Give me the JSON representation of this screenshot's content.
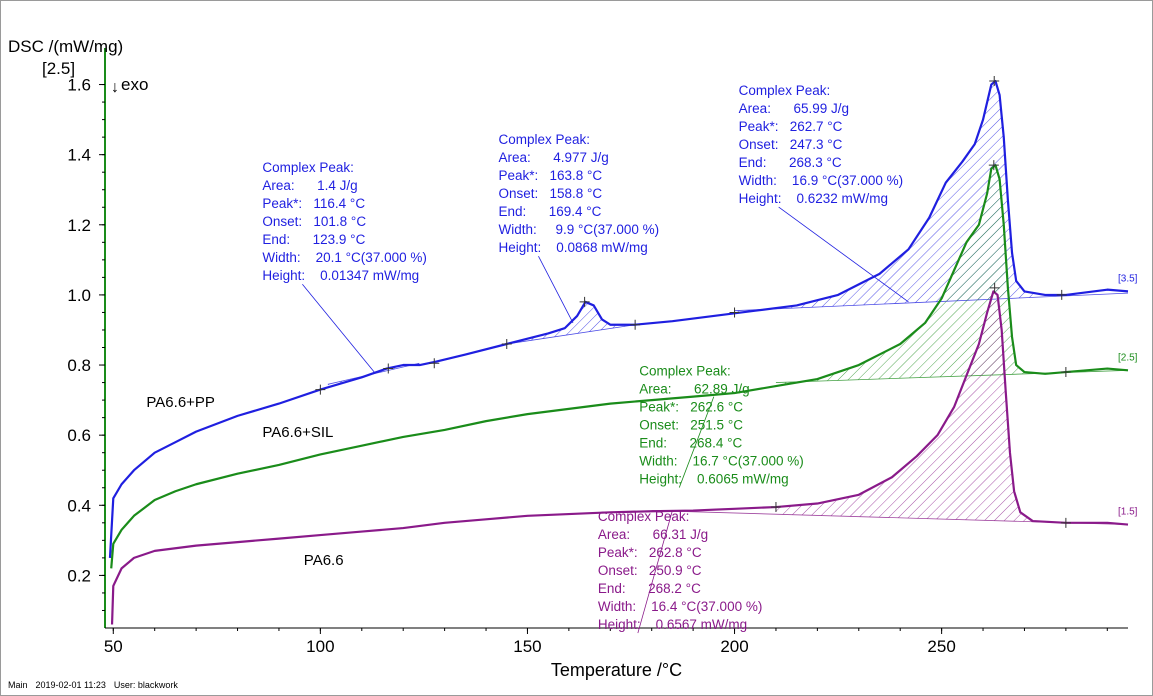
{
  "chart_data": {
    "type": "line",
    "ylabel": "DSC /(mW/mg)",
    "xlabel": "Temperature /°C",
    "ylim_bracket": "[2.5]",
    "exo_label": "exo",
    "exo_arrow": "↓",
    "xlim": [
      48,
      295
    ],
    "ylim": [
      0.05,
      1.67
    ],
    "x_ticks": [
      50,
      100,
      150,
      200,
      250
    ],
    "y_ticks": [
      0.2,
      0.4,
      0.6,
      0.8,
      1.0,
      1.2,
      1.4,
      1.6
    ],
    "y_tick_labels": [
      "0.2",
      "0.4",
      "0.6",
      "0.8",
      "1.0",
      "1.2",
      "1.4",
      "1.6"
    ],
    "series": [
      {
        "name": "PA6.6+PP",
        "color": "#1f1fe0",
        "end_tag": "[3.5]",
        "points": [
          [
            49.2,
            0.25
          ],
          [
            50,
            0.42
          ],
          [
            52,
            0.46
          ],
          [
            55,
            0.5
          ],
          [
            60,
            0.55
          ],
          [
            65,
            0.58
          ],
          [
            70,
            0.61
          ],
          [
            80,
            0.655
          ],
          [
            90,
            0.69
          ],
          [
            100,
            0.73
          ],
          [
            110,
            0.765
          ],
          [
            116,
            0.79
          ],
          [
            120,
            0.8
          ],
          [
            124,
            0.8
          ],
          [
            128,
            0.81
          ],
          [
            135,
            0.83
          ],
          [
            145,
            0.86
          ],
          [
            150,
            0.875
          ],
          [
            155,
            0.89
          ],
          [
            159,
            0.905
          ],
          [
            162,
            0.94
          ],
          [
            164,
            0.98
          ],
          [
            166,
            0.97
          ],
          [
            168,
            0.93
          ],
          [
            170,
            0.915
          ],
          [
            176,
            0.915
          ],
          [
            185,
            0.925
          ],
          [
            195,
            0.94
          ],
          [
            205,
            0.955
          ],
          [
            215,
            0.97
          ],
          [
            225,
            1.0
          ],
          [
            235,
            1.06
          ],
          [
            242,
            1.13
          ],
          [
            247,
            1.22
          ],
          [
            251,
            1.32
          ],
          [
            255,
            1.38
          ],
          [
            258,
            1.43
          ],
          [
            260,
            1.5
          ],
          [
            262,
            1.6
          ],
          [
            263,
            1.61
          ],
          [
            264,
            1.57
          ],
          [
            265,
            1.45
          ],
          [
            266,
            1.27
          ],
          [
            267,
            1.12
          ],
          [
            268,
            1.04
          ],
          [
            270,
            1.01
          ],
          [
            275,
            1.0
          ],
          [
            280,
            1.0
          ],
          [
            290,
            1.015
          ],
          [
            295,
            1.01
          ]
        ],
        "baselines": [
          {
            "from": [
              101.8,
              0.745
            ],
            "to": [
              123.9,
              0.805
            ]
          },
          {
            "from": [
              145,
              0.86
            ],
            "to": [
              176,
              0.915
            ]
          },
          {
            "from": [
              200,
              0.955
            ],
            "to": [
              295,
              1.005
            ]
          }
        ],
        "hatches": [
          {
            "from": 101.8,
            "to": 123.9
          },
          {
            "from": 145,
            "to": 176
          },
          {
            "from": 200,
            "to": 272
          }
        ],
        "markers": [
          [
            100,
            0.73
          ],
          [
            116.4,
            0.79
          ],
          [
            127.5,
            0.805
          ],
          [
            145,
            0.86
          ],
          [
            163.8,
            0.98
          ],
          [
            176,
            0.915
          ],
          [
            200,
            0.95
          ],
          [
            262.7,
            1.61
          ],
          [
            279,
            1.0
          ]
        ]
      },
      {
        "name": "PA6.6+SIL",
        "color": "#1a8c1a",
        "end_tag": "[2.5]",
        "points": [
          [
            49.5,
            0.22
          ],
          [
            50,
            0.29
          ],
          [
            52,
            0.33
          ],
          [
            55,
            0.37
          ],
          [
            60,
            0.415
          ],
          [
            65,
            0.44
          ],
          [
            70,
            0.46
          ],
          [
            80,
            0.49
          ],
          [
            90,
            0.515
          ],
          [
            100,
            0.545
          ],
          [
            110,
            0.57
          ],
          [
            120,
            0.595
          ],
          [
            130,
            0.615
          ],
          [
            140,
            0.64
          ],
          [
            150,
            0.66
          ],
          [
            160,
            0.675
          ],
          [
            170,
            0.69
          ],
          [
            180,
            0.7
          ],
          [
            190,
            0.71
          ],
          [
            200,
            0.72
          ],
          [
            210,
            0.74
          ],
          [
            220,
            0.76
          ],
          [
            230,
            0.8
          ],
          [
            240,
            0.86
          ],
          [
            246,
            0.92
          ],
          [
            250,
            0.99
          ],
          [
            253,
            1.07
          ],
          [
            256,
            1.15
          ],
          [
            259,
            1.2
          ],
          [
            261,
            1.29
          ],
          [
            262,
            1.36
          ],
          [
            263,
            1.37
          ],
          [
            264,
            1.33
          ],
          [
            265,
            1.2
          ],
          [
            266,
            1.02
          ],
          [
            267,
            0.88
          ],
          [
            268,
            0.8
          ],
          [
            270,
            0.78
          ],
          [
            275,
            0.775
          ],
          [
            280,
            0.78
          ],
          [
            290,
            0.79
          ],
          [
            295,
            0.785
          ]
        ],
        "baselines": [
          {
            "from": [
              210,
              0.75
            ],
            "to": [
              295,
              0.785
            ]
          }
        ],
        "hatches": [
          {
            "from": 210,
            "to": 272
          }
        ],
        "markers": [
          [
            262.6,
            1.37
          ],
          [
            280,
            0.78
          ]
        ]
      },
      {
        "name": "PA6.6",
        "color": "#8a1a8a",
        "end_tag": "[1.5]",
        "points": [
          [
            49.7,
            0.06
          ],
          [
            50,
            0.17
          ],
          [
            52,
            0.22
          ],
          [
            55,
            0.25
          ],
          [
            60,
            0.27
          ],
          [
            70,
            0.285
          ],
          [
            80,
            0.295
          ],
          [
            90,
            0.305
          ],
          [
            100,
            0.315
          ],
          [
            110,
            0.325
          ],
          [
            120,
            0.335
          ],
          [
            130,
            0.35
          ],
          [
            140,
            0.36
          ],
          [
            150,
            0.37
          ],
          [
            160,
            0.375
          ],
          [
            170,
            0.38
          ],
          [
            180,
            0.383
          ],
          [
            190,
            0.385
          ],
          [
            200,
            0.39
          ],
          [
            210,
            0.395
          ],
          [
            220,
            0.405
          ],
          [
            230,
            0.43
          ],
          [
            238,
            0.48
          ],
          [
            244,
            0.54
          ],
          [
            249,
            0.6
          ],
          [
            253,
            0.68
          ],
          [
            256,
            0.77
          ],
          [
            259,
            0.86
          ],
          [
            261,
            0.95
          ],
          [
            262.5,
            1.01
          ],
          [
            263.5,
            1.0
          ],
          [
            264.5,
            0.9
          ],
          [
            265.5,
            0.72
          ],
          [
            266.5,
            0.55
          ],
          [
            267.5,
            0.44
          ],
          [
            269,
            0.38
          ],
          [
            272,
            0.355
          ],
          [
            280,
            0.35
          ],
          [
            290,
            0.35
          ],
          [
            295,
            0.345
          ]
        ],
        "baselines": [
          {
            "from": [
              180,
              0.385
            ],
            "to": [
              295,
              0.345
            ]
          }
        ],
        "hatches": [
          {
            "from": 210,
            "to": 272
          }
        ],
        "markers": [
          [
            210,
            0.395
          ],
          [
            262.8,
            1.02
          ],
          [
            280,
            0.35
          ]
        ]
      }
    ],
    "curve_labels": [
      {
        "text": "PA6.6+PP",
        "color": "#000000",
        "x": 58,
        "y": 0.68
      },
      {
        "text": "PA6.6+SIL",
        "color": "#000000",
        "x": 86,
        "y": 0.595
      },
      {
        "text": "PA6.6",
        "color": "#000000",
        "x": 96,
        "y": 0.23
      }
    ],
    "annotations": [
      {
        "color": "#1f1fe0",
        "at": [
          86,
          1.35
        ],
        "leader_to": [
          113,
          0.78
        ],
        "lines": [
          "Complex Peak:",
          "Area:      1.4 J/g",
          "Peak*:   116.4 °C",
          "Onset:   101.8 °C",
          "End:      123.9 °C",
          "Width:    20.1 °C(37.000 %)",
          "Height:    0.01347 mW/mg"
        ]
      },
      {
        "color": "#1f1fe0",
        "at": [
          143,
          1.43
        ],
        "leader_to": [
          161,
          0.92
        ],
        "lines": [
          "Complex Peak:",
          "Area:      4.977 J/g",
          "Peak*:   163.8 °C",
          "Onset:   158.8 °C",
          "End:      169.4 °C",
          "Width:     9.9 °C(37.000 %)",
          "Height:    0.0868 mW/mg"
        ]
      },
      {
        "color": "#1f1fe0",
        "at": [
          201,
          1.57
        ],
        "leader_to": [
          242,
          0.98
        ],
        "lines": [
          "Complex Peak:",
          "Area:      65.99 J/g",
          "Peak*:   262.7 °C",
          "Onset:   247.3 °C",
          "End:      268.3 °C",
          "Width:    16.9 °C(37.000 %)",
          "Height:    0.6232 mW/mg"
        ]
      },
      {
        "color": "#1a8c1a",
        "at": [
          177,
          0.77
        ],
        "leader_to": [
          195,
          0.71
        ],
        "lines": [
          "Complex Peak:",
          "Area:      62.89 J/g",
          "Peak*:   262.6 °C",
          "Onset:   251.5 °C",
          "End:      268.4 °C",
          "Width:    16.7 °C(37.000 %)",
          "Height:    0.6065 mW/mg"
        ]
      },
      {
        "color": "#8a1a8a",
        "at": [
          167,
          0.355
        ],
        "leader_to": [
          185,
          0.385
        ],
        "lines": [
          "Complex Peak:",
          "Area:      66.31 J/g",
          "Peak*:   262.8 °C",
          "Onset:   250.9 °C",
          "End:      268.2 °C",
          "Width:    16.4 °C(37.000 %)",
          "Height:    0.6567 mW/mg"
        ]
      }
    ]
  },
  "footer": {
    "mode": "Main",
    "datetime": "2019-02-01 11:23",
    "user": "User: blackwork"
  }
}
